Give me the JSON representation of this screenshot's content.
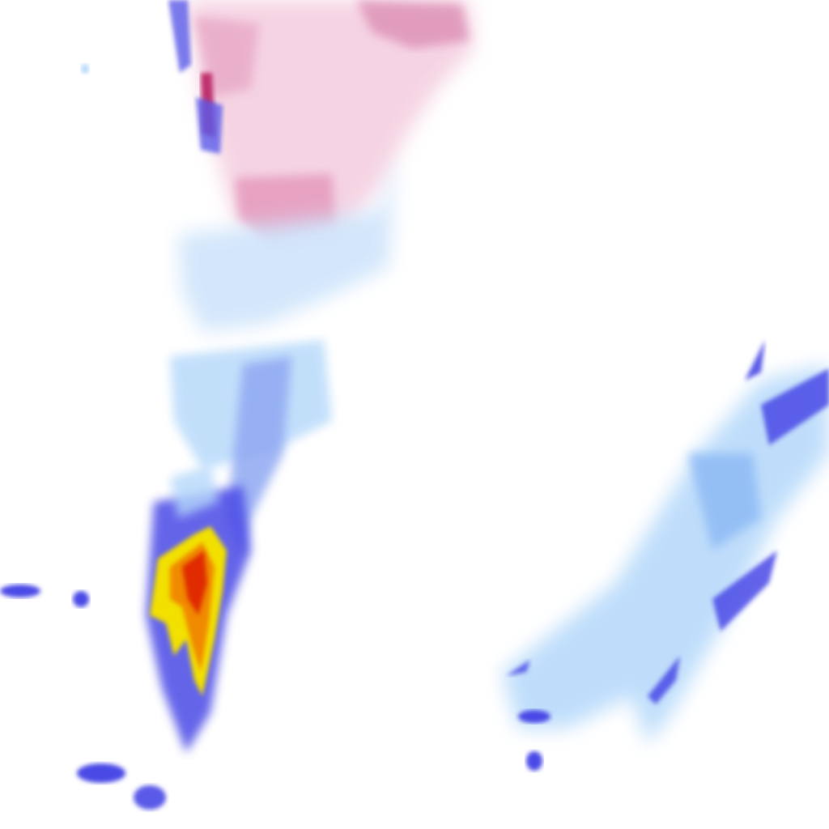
{
  "map": {
    "layer": "precipitation-radar",
    "colors": {
      "background": "#ffffff",
      "snow_light": "#f2c6da",
      "snow_heavy": "#b8306e",
      "rain_light": "#b4d8fa",
      "rain_moderate": "#4a4ae6",
      "rain_heavy_yellow": "#f2e000",
      "rain_heavy_orange": "#f08a00",
      "rain_extreme_red": "#e02a00"
    }
  }
}
